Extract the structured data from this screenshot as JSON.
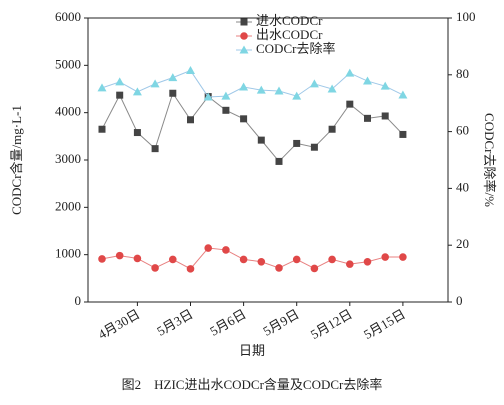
{
  "chart_data": {
    "type": "line",
    "ylabel": "CODCr含量/mg·L-1",
    "y2label": "CODCr去除率/%",
    "xlabel": "日期",
    "caption": "图2　HZIC进出水CODCr含量及CODCr去除率",
    "categories": [
      null,
      null,
      "4月30日",
      null,
      null,
      "5月3日",
      null,
      null,
      "5月6日",
      null,
      null,
      "5月9日",
      null,
      null,
      "5月12日",
      null,
      null,
      "5月15日"
    ],
    "ylim": [
      0,
      6000
    ],
    "yticks": [
      0,
      1000,
      2000,
      3000,
      4000,
      5000,
      6000
    ],
    "y2lim": [
      0,
      100
    ],
    "y2ticks": [
      0,
      20,
      40,
      60,
      80,
      100
    ],
    "legend": "top",
    "series": [
      {
        "name": "进水CODCr",
        "color": "#444444",
        "line_color": "#8a8a8a",
        "marker": "square",
        "values": [
          3650,
          4370,
          3580,
          3240,
          4410,
          3850,
          4340,
          4050,
          3870,
          3420,
          2970,
          3350,
          3270,
          3650,
          4180,
          3880,
          3930,
          3540
        ]
      },
      {
        "name": "出水CODCr",
        "color": "#e04848",
        "line_color": "#e88080",
        "marker": "circle",
        "values": [
          910,
          980,
          920,
          720,
          900,
          700,
          1140,
          1100,
          900,
          850,
          720,
          900,
          710,
          900,
          800,
          850,
          950,
          950
        ]
      },
      {
        "name": "CODCr去除率",
        "color": "#7fd6e3",
        "line_color": "#9fc8e8",
        "marker": "triangle",
        "axis": "y2",
        "values": [
          75.4,
          77.5,
          74,
          76.8,
          79,
          81.5,
          72.2,
          72.5,
          75.7,
          74.6,
          74.3,
          72.5,
          76.8,
          75,
          80.6,
          77.8,
          76,
          72.9
        ]
      }
    ]
  }
}
